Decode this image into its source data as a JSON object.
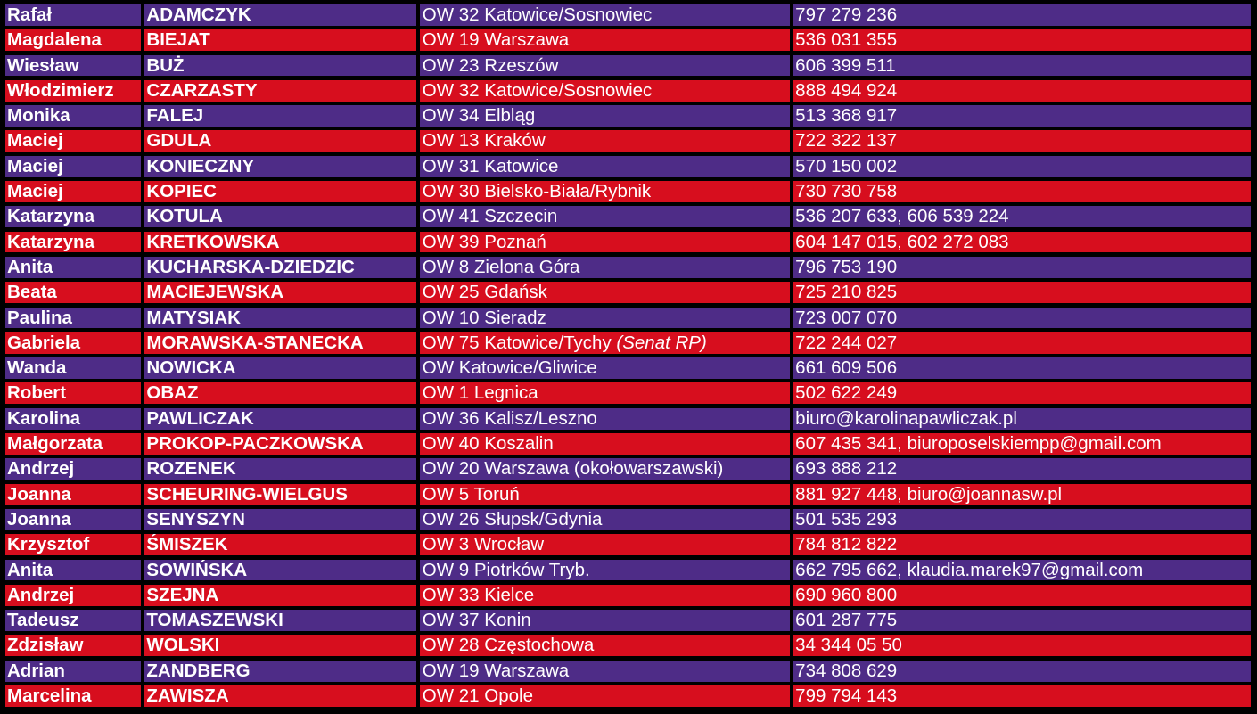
{
  "colors": {
    "odd_row": "#4E2C87",
    "even_row": "#D70E1E",
    "text": "#FFFFFF",
    "background": "#000000"
  },
  "rows": [
    {
      "first": "Rafał",
      "last": "ADAMCZYK",
      "district": "OW 32 Katowice/Sosnowiec",
      "contact": "797 279 236"
    },
    {
      "first": "Magdalena",
      "last": "BIEJAT",
      "district": "OW 19 Warszawa",
      "contact": "536 031 355"
    },
    {
      "first": "Wiesław",
      "last": "BUŻ",
      "district": "OW 23 Rzeszów",
      "contact": "606 399 511"
    },
    {
      "first": "Włodzimierz",
      "last": "CZARZASTY",
      "district": "OW 32 Katowice/Sosnowiec",
      "contact": "888 494 924"
    },
    {
      "first": "Monika",
      "last": "FALEJ",
      "district": "OW 34 Elbląg",
      "contact": "513 368 917"
    },
    {
      "first": "Maciej",
      "last": "GDULA",
      "district": "OW 13 Kraków",
      "contact": "722 322 137"
    },
    {
      "first": "Maciej",
      "last": "KONIECZNY",
      "district": "OW 31 Katowice",
      "contact": "570 150 002"
    },
    {
      "first": "Maciej",
      "last": "KOPIEC",
      "district": "OW 30 Bielsko-Biała/Rybnik",
      "contact": "730 730 758"
    },
    {
      "first": "Katarzyna",
      "last": "KOTULA",
      "district": "OW 41 Szczecin",
      "contact": "536 207 633, 606 539 224"
    },
    {
      "first": "Katarzyna",
      "last": "KRETKOWSKA",
      "district": "OW 39 Poznań",
      "contact": "604 147 015, 602 272 083"
    },
    {
      "first": "Anita",
      "last": "KUCHARSKA-DZIEDZIC",
      "district": "OW 8 Zielona Góra",
      "contact": "796 753 190"
    },
    {
      "first": "Beata",
      "last": "MACIEJEWSKA",
      "district": "OW 25 Gdańsk",
      "contact": "725 210 825"
    },
    {
      "first": "Paulina",
      "last": "MATYSIAK",
      "district": "OW 10 Sieradz",
      "contact": "723 007 070"
    },
    {
      "first": "Gabriela",
      "last": "MORAWSKA-STANECKA",
      "district": "OW 75 Katowice/Tychy",
      "district_note": "(Senat RP)",
      "contact": "722 244 027"
    },
    {
      "first": "Wanda",
      "last": "NOWICKA",
      "district": "OW Katowice/Gliwice",
      "contact": "661 609 506"
    },
    {
      "first": "Robert",
      "last": "OBAZ",
      "district": "OW 1 Legnica",
      "contact": "502 622 249"
    },
    {
      "first": "Karolina",
      "last": "PAWLICZAK",
      "district": "OW 36 Kalisz/Leszno",
      "contact": "biuro@karolinapawliczak.pl"
    },
    {
      "first": "Małgorzata",
      "last": "PROKOP-PACZKOWSKA",
      "district": "OW 40 Koszalin",
      "contact": "607 435 341, biuroposelskiempp@gmail.com"
    },
    {
      "first": "Andrzej",
      "last": "ROZENEK",
      "district": "OW 20 Warszawa (okołowarszawski)",
      "contact": "693 888 212"
    },
    {
      "first": "Joanna",
      "last": "SCHEURING-WIELGUS",
      "district": "OW 5 Toruń",
      "contact": "881 927 448, biuro@joannasw.pl"
    },
    {
      "first": "Joanna",
      "last": "SENYSZYN",
      "district": "OW 26 Słupsk/Gdynia",
      "contact": "501 535 293"
    },
    {
      "first": "Krzysztof",
      "last": "ŚMISZEK",
      "district": "OW 3 Wrocław",
      "contact": "784 812 822"
    },
    {
      "first": "Anita",
      "last": "SOWIŃSKA",
      "district": "OW 9 Piotrków Tryb.",
      "contact": "662 795 662, klaudia.marek97@gmail.com"
    },
    {
      "first": "Andrzej",
      "last": "SZEJNA",
      "district": "OW 33 Kielce",
      "contact": "690 960 800"
    },
    {
      "first": "Tadeusz",
      "last": "TOMASZEWSKI",
      "district": "OW 37 Konin",
      "contact": "601 287 775"
    },
    {
      "first": "Zdzisław",
      "last": "WOLSKI",
      "district": "OW 28 Częstochowa",
      "contact": "34 344 05 50"
    },
    {
      "first": "Adrian",
      "last": "ZANDBERG",
      "district": "OW 19 Warszawa",
      "contact": "734 808 629"
    },
    {
      "first": "Marcelina",
      "last": "ZAWISZA",
      "district": "OW 21 Opole",
      "contact": "799 794 143"
    }
  ]
}
